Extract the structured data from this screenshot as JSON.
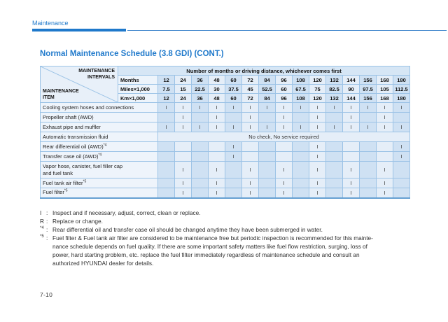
{
  "page": {
    "breadcrumb": "Maintenance",
    "title": "Normal Maintenance Schedule (3.8 GDI) (CONT.)",
    "page_number": "7-10"
  },
  "colors": {
    "accent_blue": "#1f79cb",
    "table_border": "#9cc3e6",
    "band_dark": "#cfe1f3",
    "band_light": "#e5eef8",
    "label_bg": "#eef4fb",
    "header_span_bg": "#d6e6f5",
    "corner_bg": "#e8f0f9"
  },
  "table": {
    "corner": {
      "top": [
        "MAINTENANCE",
        "INTERVALS"
      ],
      "bottom": [
        "MAINTENANCE",
        "ITEM"
      ]
    },
    "span_header": "Number of months or driving distance, whichever comes first",
    "interval_rows": [
      {
        "label": "Months",
        "values": [
          "12",
          "24",
          "36",
          "48",
          "60",
          "72",
          "84",
          "96",
          "108",
          "120",
          "132",
          "144",
          "156",
          "168",
          "180"
        ]
      },
      {
        "label": "Miles×1,000",
        "values": [
          "7.5",
          "15",
          "22.5",
          "30",
          "37.5",
          "45",
          "52.5",
          "60",
          "67.5",
          "75",
          "82.5",
          "90",
          "97.5",
          "105",
          "112.5"
        ]
      },
      {
        "label": "Km×1,000",
        "values": [
          "12",
          "24",
          "36",
          "48",
          "60",
          "72",
          "84",
          "96",
          "108",
          "120",
          "132",
          "144",
          "156",
          "168",
          "180"
        ]
      }
    ],
    "item_rows": [
      {
        "label": "Cooling system hoses and connections",
        "sup": "",
        "marks": [
          "I",
          "I",
          "I",
          "I",
          "I",
          "I",
          "I",
          "I",
          "I",
          "I",
          "I",
          "I",
          "I",
          "I",
          "I"
        ]
      },
      {
        "label": "Propeller shaft (AWD)",
        "sup": "",
        "marks": [
          "",
          "I",
          "",
          "I",
          "",
          "I",
          "",
          "I",
          "",
          "I",
          "",
          "I",
          "",
          "I",
          ""
        ]
      },
      {
        "label": "Exhaust pipe and muffler",
        "sup": "",
        "marks": [
          "I",
          "I",
          "I",
          "I",
          "I",
          "I",
          "I",
          "I",
          "I",
          "I",
          "I",
          "I",
          "I",
          "I",
          "I"
        ]
      },
      {
        "label": "Automatic transmission fluid",
        "sup": "",
        "span_text": "No check, No service required"
      },
      {
        "label": "Rear differential oil (AWD)",
        "sup": "*4",
        "marks": [
          "",
          "",
          "",
          "",
          "I",
          "",
          "",
          "",
          "",
          "I",
          "",
          "",
          "",
          "",
          "I"
        ]
      },
      {
        "label": "Transfer case oil (AWD)",
        "sup": "*4",
        "marks": [
          "",
          "",
          "",
          "",
          "I",
          "",
          "",
          "",
          "",
          "I",
          "",
          "",
          "",
          "",
          "I"
        ]
      },
      {
        "label": "Vapor hose, canister, fuel filler cap",
        "label2": "and fuel tank",
        "sup": "",
        "marks": [
          "",
          "I",
          "",
          "I",
          "",
          "I",
          "",
          "I",
          "",
          "I",
          "",
          "I",
          "",
          "I",
          ""
        ]
      },
      {
        "label": "Fuel tank air filter",
        "sup": "*5",
        "marks": [
          "",
          "I",
          "",
          "I",
          "",
          "I",
          "",
          "I",
          "",
          "I",
          "",
          "I",
          "",
          "I",
          ""
        ]
      },
      {
        "label": "Fuel filter",
        "sup": "*5",
        "marks": [
          "",
          "I",
          "",
          "I",
          "",
          "I",
          "",
          "I",
          "",
          "I",
          "",
          "I",
          "",
          "I",
          ""
        ]
      }
    ]
  },
  "footnote_separator": ":",
  "footnotes": [
    {
      "marker": "I",
      "marker_sup": "",
      "lines": [
        "Inspect and if necessary, adjust, correct, clean or replace."
      ]
    },
    {
      "marker": "R",
      "marker_sup": "",
      "lines": [
        "Replace or change."
      ]
    },
    {
      "marker": "",
      "marker_sup": "*4",
      "lines": [
        "Rear differential oil and transfer case oil should be changed anytime they have been submerged in water."
      ]
    },
    {
      "marker": "",
      "marker_sup": "*5",
      "lines": [
        "Fuel filter & Fuel tank air filter are considered to be maintenance free but periodic inspection is recommended for this mainte-",
        "nance schedule depends on fuel quality. If there are some important safety matters like fuel flow restriction, surging, loss of",
        "power, hard starting problem, etc. replace the fuel filter immediately regardless of maintenance schedule and consult an",
        "authorized HYUNDAI dealer for details."
      ]
    }
  ]
}
